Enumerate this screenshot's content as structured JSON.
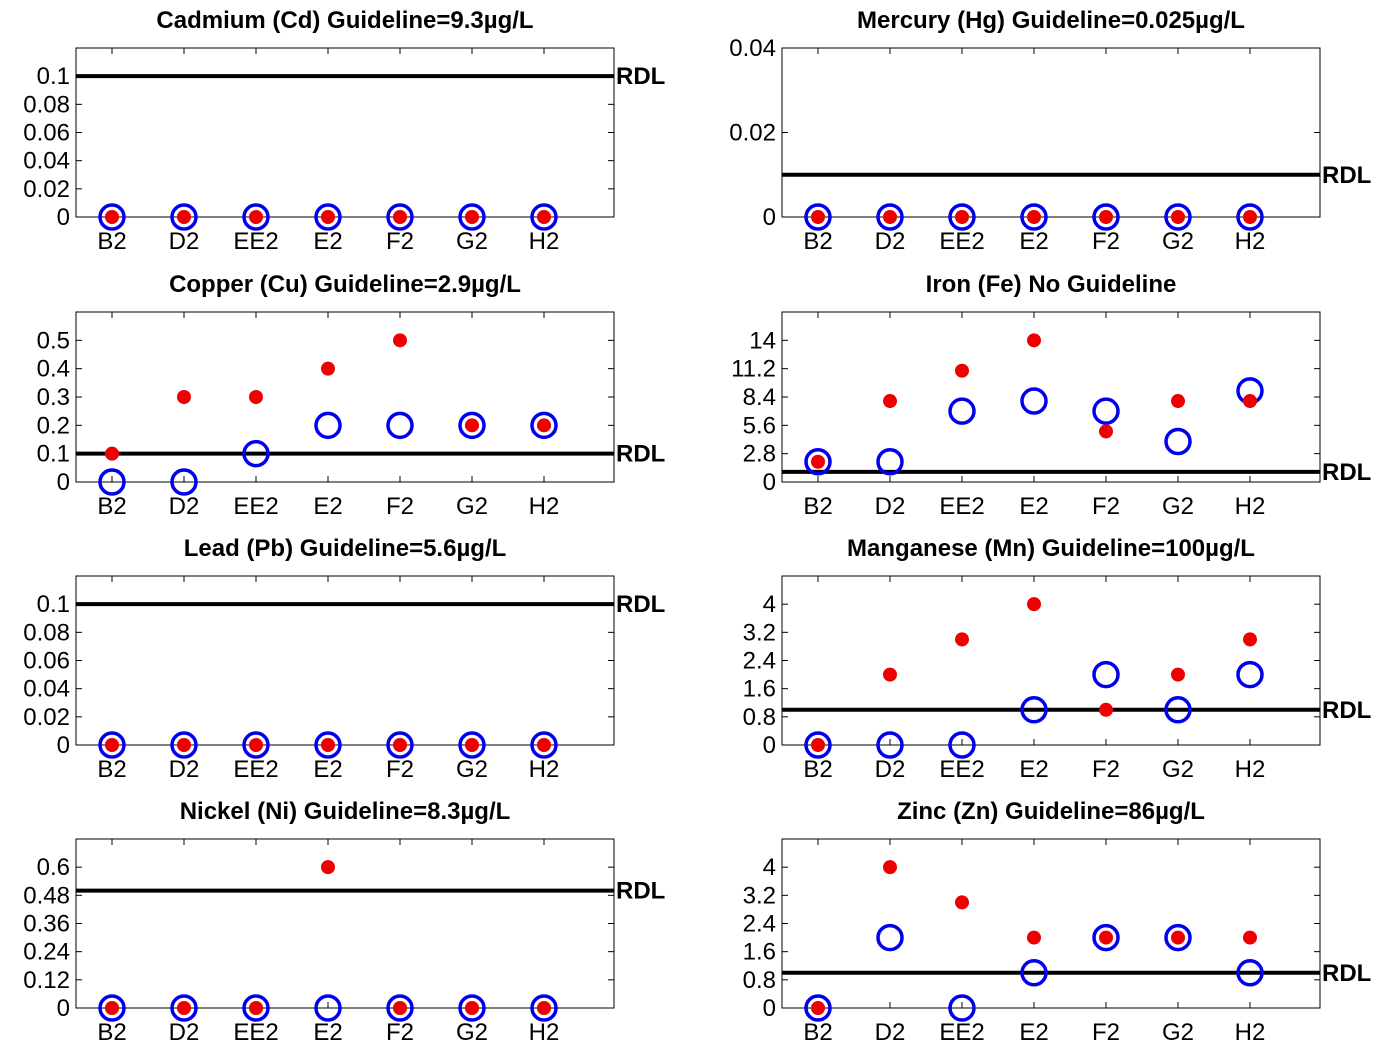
{
  "colors": {
    "background": "#ffffff",
    "axes": "#000000",
    "rdl_line": "#000000",
    "open_circle": "#0000ee",
    "filled_dot": "#ee0000"
  },
  "rdl_label": "RDL",
  "chart_data": [
    {
      "type": "scatter",
      "title": "Cadmium (Cd)  Guideline=9.3µg/L",
      "categories": [
        "B2",
        "D2",
        "EE2",
        "E2",
        "F2",
        "G2",
        "H2"
      ],
      "yticks": [
        "0",
        "0.02",
        "0.04",
        "0.06",
        "0.08",
        "0.1"
      ],
      "ylim": [
        0,
        0.12
      ],
      "rdl": 0.1,
      "series": [
        {
          "marker": "open-circle",
          "values": [
            0,
            0,
            0,
            0,
            0,
            0,
            0
          ]
        },
        {
          "marker": "filled-dot",
          "values": [
            0,
            0,
            0,
            0,
            0,
            0,
            0
          ]
        }
      ]
    },
    {
      "type": "scatter",
      "title": "Mercury (Hg)  Guideline=0.025µg/L",
      "categories": [
        "B2",
        "D2",
        "EE2",
        "E2",
        "F2",
        "G2",
        "H2"
      ],
      "yticks": [
        "0",
        "0.02",
        "0.04"
      ],
      "ylim": [
        0,
        0.04
      ],
      "rdl": 0.01,
      "series": [
        {
          "marker": "open-circle",
          "values": [
            0,
            0,
            0,
            0,
            0,
            0,
            0
          ]
        },
        {
          "marker": "filled-dot",
          "values": [
            0,
            0,
            0,
            0,
            0,
            0,
            0
          ]
        }
      ]
    },
    {
      "type": "scatter",
      "title": "Copper (Cu)  Guideline=2.9µg/L",
      "categories": [
        "B2",
        "D2",
        "EE2",
        "E2",
        "F2",
        "G2",
        "H2"
      ],
      "yticks": [
        "0",
        "0.1",
        "0.2",
        "0.3",
        "0.4",
        "0.5"
      ],
      "ylim": [
        0,
        0.6
      ],
      "rdl": 0.1,
      "series": [
        {
          "marker": "open-circle",
          "values": [
            0,
            0,
            0.1,
            0.2,
            0.2,
            0.2,
            0.2
          ]
        },
        {
          "marker": "filled-dot",
          "values": [
            0.1,
            0.3,
            0.3,
            0.4,
            0.5,
            0.2,
            0.2
          ]
        }
      ]
    },
    {
      "type": "scatter",
      "title": "Iron (Fe) No Guideline",
      "categories": [
        "B2",
        "D2",
        "EE2",
        "E2",
        "F2",
        "G2",
        "H2"
      ],
      "yticks": [
        "0",
        "2.8",
        "5.6",
        "8.4",
        "11.2",
        "14"
      ],
      "ylim": [
        0,
        16.8
      ],
      "rdl": 1,
      "series": [
        {
          "marker": "open-circle",
          "values": [
            2,
            2,
            7,
            8,
            7,
            4,
            9
          ]
        },
        {
          "marker": "filled-dot",
          "values": [
            2,
            8,
            11,
            14,
            5,
            8,
            8
          ]
        }
      ]
    },
    {
      "type": "scatter",
      "title": "Lead (Pb)  Guideline=5.6µg/L",
      "categories": [
        "B2",
        "D2",
        "EE2",
        "E2",
        "F2",
        "G2",
        "H2"
      ],
      "yticks": [
        "0",
        "0.02",
        "0.04",
        "0.06",
        "0.08",
        "0.1"
      ],
      "ylim": [
        0,
        0.12
      ],
      "rdl": 0.1,
      "series": [
        {
          "marker": "open-circle",
          "values": [
            0,
            0,
            0,
            0,
            0,
            0,
            0
          ]
        },
        {
          "marker": "filled-dot",
          "values": [
            0,
            0,
            0,
            0,
            0,
            0,
            0
          ]
        }
      ]
    },
    {
      "type": "scatter",
      "title": "Manganese (Mn)  Guideline=100µg/L",
      "categories": [
        "B2",
        "D2",
        "EE2",
        "E2",
        "F2",
        "G2",
        "H2"
      ],
      "yticks": [
        "0",
        "0.8",
        "1.6",
        "2.4",
        "3.2",
        "4"
      ],
      "ylim": [
        0,
        4.8
      ],
      "rdl": 1,
      "series": [
        {
          "marker": "open-circle",
          "values": [
            0,
            0,
            0,
            1,
            2,
            1,
            2
          ]
        },
        {
          "marker": "filled-dot",
          "values": [
            0,
            2,
            3,
            4,
            1,
            2,
            3
          ]
        }
      ]
    },
    {
      "type": "scatter",
      "title": "Nickel (Ni)  Guideline=8.3µg/L",
      "categories": [
        "B2",
        "D2",
        "EE2",
        "E2",
        "F2",
        "G2",
        "H2"
      ],
      "yticks": [
        "0",
        "0.12",
        "0.24",
        "0.36",
        "0.48",
        "0.6"
      ],
      "ylim": [
        0,
        0.72
      ],
      "rdl": 0.5,
      "series": [
        {
          "marker": "open-circle",
          "values": [
            0,
            0,
            0,
            0,
            0,
            0,
            0
          ]
        },
        {
          "marker": "filled-dot",
          "values": [
            0,
            0,
            0,
            0.6,
            0,
            0,
            0
          ]
        }
      ]
    },
    {
      "type": "scatter",
      "title": "Zinc (Zn)  Guideline=86µg/L",
      "categories": [
        "B2",
        "D2",
        "EE2",
        "E2",
        "F2",
        "G2",
        "H2"
      ],
      "yticks": [
        "0",
        "0.8",
        "1.6",
        "2.4",
        "3.2",
        "4"
      ],
      "ylim": [
        0,
        4.8
      ],
      "rdl": 1,
      "series": [
        {
          "marker": "open-circle",
          "values": [
            0,
            2,
            0,
            1,
            2,
            2,
            1
          ]
        },
        {
          "marker": "filled-dot",
          "values": [
            0,
            4,
            3,
            2,
            2,
            2,
            2
          ]
        }
      ]
    }
  ]
}
